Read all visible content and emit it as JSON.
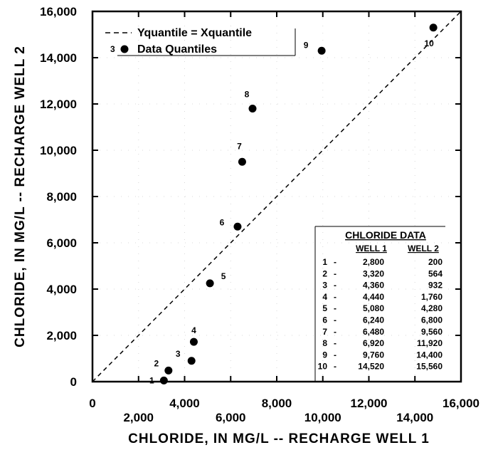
{
  "chart_data": {
    "type": "scatter",
    "title": "",
    "xlabel": "CHLORIDE, IN MG/L -- RECHARGE WELL 1",
    "ylabel": "CHLORIDE, IN MG/L -- RECHARGE WELL 2",
    "xlim": [
      0,
      16000
    ],
    "ylim": [
      0,
      16000
    ],
    "x_ticks": [
      {
        "value": 0,
        "label": "0"
      },
      {
        "value": 2000,
        "label": "2,000"
      },
      {
        "value": 4000,
        "label": "4,000"
      },
      {
        "value": 6000,
        "label": "6,000"
      },
      {
        "value": 8000,
        "label": "8,000"
      },
      {
        "value": 10000,
        "label": "10,000"
      },
      {
        "value": 12000,
        "label": "12,000"
      },
      {
        "value": 14000,
        "label": "14,000"
      },
      {
        "value": 16000,
        "label": "16,000"
      }
    ],
    "y_ticks": [
      {
        "value": 0,
        "label": "0"
      },
      {
        "value": 2000,
        "label": "2,000"
      },
      {
        "value": 4000,
        "label": "4,000"
      },
      {
        "value": 6000,
        "label": "6,000"
      },
      {
        "value": 8000,
        "label": "8,000"
      },
      {
        "value": 10000,
        "label": "10,000"
      },
      {
        "value": 12000,
        "label": "12,000"
      },
      {
        "value": 14000,
        "label": "14,000"
      },
      {
        "value": 16000,
        "label": "16,000"
      }
    ],
    "legend": {
      "placement": "top-left",
      "entries": [
        {
          "label": "Yquantile = Xquantile",
          "symbol": "dashed-line"
        },
        {
          "label": "Data Quantiles",
          "symbol": "filled-circle",
          "marker_text": "3"
        }
      ]
    },
    "reference_line": {
      "from": [
        0,
        0
      ],
      "to": [
        16000,
        16000
      ],
      "style": "dashed",
      "name": "Yquantile = Xquantile"
    },
    "series": [
      {
        "name": "Data Quantiles",
        "points": [
          {
            "label": "1",
            "x": 3100,
            "y": 50
          },
          {
            "label": "2",
            "x": 3300,
            "y": 480
          },
          {
            "label": "3",
            "x": 4300,
            "y": 900
          },
          {
            "label": "4",
            "x": 4400,
            "y": 1720
          },
          {
            "label": "5",
            "x": 5100,
            "y": 4250
          },
          {
            "label": "6",
            "x": 6300,
            "y": 6700
          },
          {
            "label": "7",
            "x": 6500,
            "y": 9500
          },
          {
            "label": "8",
            "x": 6950,
            "y": 11800
          },
          {
            "label": "9",
            "x": 9950,
            "y": 14300
          },
          {
            "label": "10",
            "x": 14800,
            "y": 15300
          }
        ]
      }
    ],
    "table": {
      "title": "CHLORIDE  DATA",
      "columns": [
        "WELL  1",
        "WELL  2"
      ],
      "rows": [
        {
          "index": "1",
          "well1": "2,800",
          "well2": "200"
        },
        {
          "index": "2",
          "well1": "3,320",
          "well2": "564"
        },
        {
          "index": "3",
          "well1": "4,360",
          "well2": "932"
        },
        {
          "index": "4",
          "well1": "4,440",
          "well2": "1,760"
        },
        {
          "index": "5",
          "well1": "5,080",
          "well2": "4,280"
        },
        {
          "index": "6",
          "well1": "6,240",
          "well2": "6,800"
        },
        {
          "index": "7",
          "well1": "6,480",
          "well2": "9,560"
        },
        {
          "index": "8",
          "well1": "6,920",
          "well2": "11,920"
        },
        {
          "index": "9",
          "well1": "9,760",
          "well2": "14,400"
        },
        {
          "index": "10",
          "well1": "14,520",
          "well2": "15,560"
        }
      ]
    }
  }
}
